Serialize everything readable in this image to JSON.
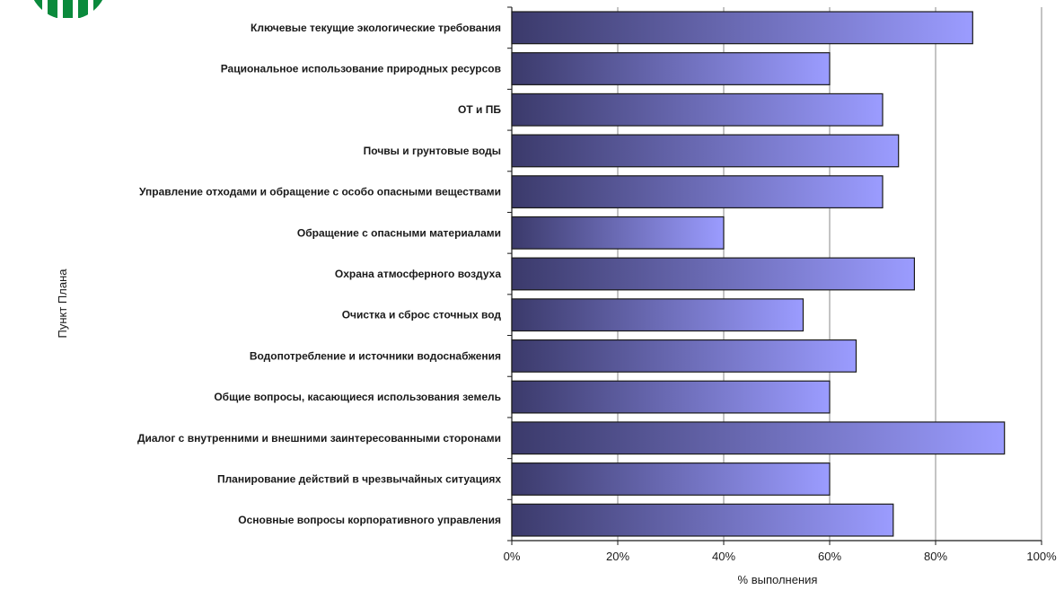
{
  "chart_data": {
    "type": "bar",
    "orientation": "horizontal",
    "title": "",
    "xlabel": "% выполнения",
    "ylabel": "Пункт Плана",
    "xlim": [
      0,
      100
    ],
    "grid": true,
    "x_ticks": [
      0,
      20,
      40,
      60,
      80,
      100
    ],
    "x_tick_labels": [
      "0%",
      "20%",
      "40%",
      "60%",
      "80%",
      "100%"
    ],
    "categories": [
      "Ключевые текущие экологические требования",
      "Рациональное использование природных ресурсов",
      "ОТ и ПБ",
      "Почвы и грунтовые воды",
      "Управление отходами и обращение с особо опасными веществами",
      "Обращение с опасными материалами",
      "Охрана атмосферного воздуха",
      "Очистка и сброс сточных вод",
      "Водопотребление и источники водоснабжения",
      "Общие вопросы, касающиеся использования земель",
      "Диалог с внутренними и внешними заинтересованными сторонами",
      "Планирование действий в чрезвычайных ситуациях",
      "Основные вопросы корпоративного управления"
    ],
    "values": [
      87,
      60,
      70,
      73,
      70,
      40,
      76,
      55,
      65,
      60,
      93,
      60,
      72
    ],
    "colors": {
      "bar_dark": "#3b3a6b",
      "bar_light": "#9b9cff",
      "bar_outline": "#1a1a1a",
      "grid": "#8a8a8a",
      "axis": "#1a1a1a"
    }
  },
  "logo": {
    "name": "logo-icon",
    "colors": [
      "#0a8a3c",
      "#0a8a3c",
      "#0a8a3c",
      "#0a8a3c",
      "#0a8a3c"
    ]
  }
}
